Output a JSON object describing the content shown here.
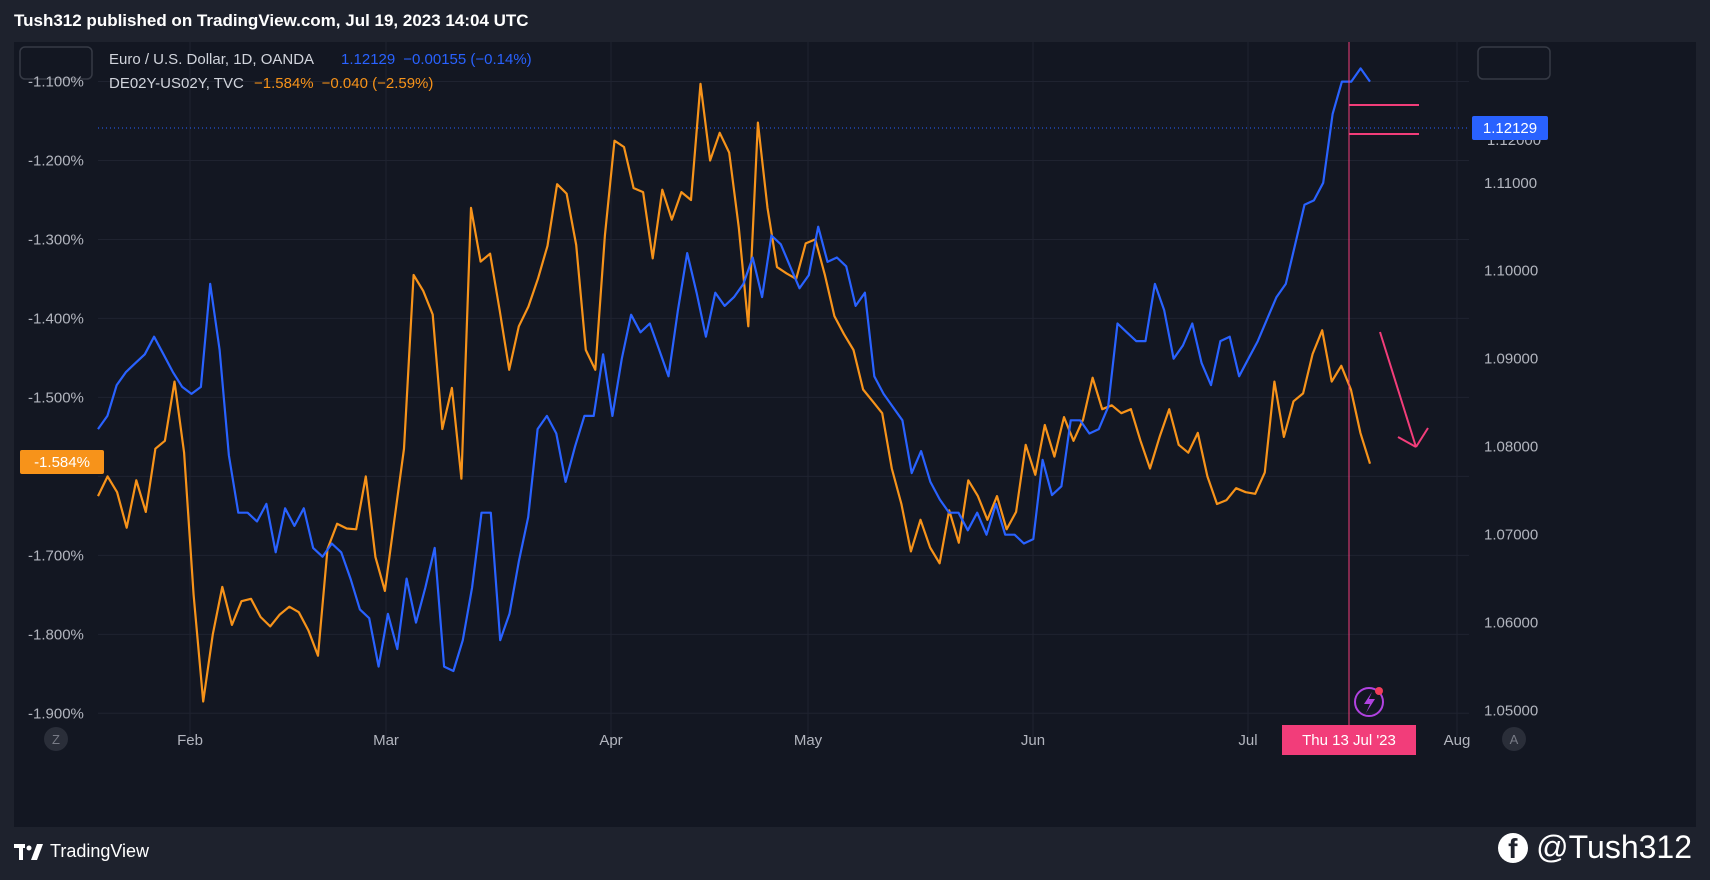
{
  "header": {
    "publish_text": "Tush312 published on TradingView.com, Jul 19, 2023 14:04 UTC"
  },
  "legend": {
    "eurusd": {
      "name": "Euro / U.S. Dollar, 1D, OANDA",
      "price": "1.12129",
      "change": "−0.00155 (−0.14%)",
      "color": "#2962ff"
    },
    "spread": {
      "name": "DE02Y-US02Y, TVC",
      "price": "−1.584%",
      "change": "−0.040 (−2.59%)",
      "color": "#f7931a"
    }
  },
  "price_badges": {
    "left": "-1.584%",
    "right": "1.12129",
    "right_partial": "1.12000"
  },
  "cursor": {
    "date_label": "Thu 13 Jul '23",
    "color": "#f23d7a"
  },
  "bottom_buttons": {
    "zoom_left": "Z",
    "auto_right": "A"
  },
  "footer": {
    "brand": "TradingView",
    "author": "@Tush312"
  },
  "icons": [
    "tradingview-logo-icon",
    "facebook-icon",
    "lightning-icon"
  ],
  "chart_data": {
    "type": "line",
    "x_axis": {
      "labels": [
        "Feb",
        "Mar",
        "Apr",
        "May",
        "Jun",
        "Jul",
        "Aug"
      ]
    },
    "y_left": {
      "labels": [
        "-1.100%",
        "-1.200%",
        "-1.300%",
        "-1.400%",
        "-1.500%",
        "-1.700%",
        "-1.800%",
        "-1.900%"
      ],
      "range": [
        -1.93,
        -1.05
      ]
    },
    "y_right": {
      "labels": [
        "1.11000",
        "1.10000",
        "1.09000",
        "1.08000",
        "1.07000",
        "1.06000",
        "1.05000"
      ],
      "range": [
        1.047,
        1.126
      ]
    },
    "grid": true,
    "series": [
      {
        "name": "Euro / U.S. Dollar, 1D, OANDA",
        "axis": "right",
        "color": "#2962ff",
        "values": [
          1.082,
          1.0835,
          1.087,
          1.0885,
          1.0895,
          1.0905,
          1.0925,
          1.0905,
          1.0885,
          1.0868,
          1.086,
          1.0868,
          1.0985,
          1.091,
          1.079,
          1.0725,
          1.0725,
          1.0715,
          1.0735,
          1.068,
          1.073,
          1.071,
          1.073,
          1.0685,
          1.0675,
          1.069,
          1.068,
          1.065,
          1.0615,
          1.0605,
          1.055,
          1.061,
          1.057,
          1.065,
          1.06,
          1.064,
          1.0685,
          1.055,
          1.0545,
          1.058,
          1.064,
          1.0725,
          1.0725,
          1.058,
          1.061,
          1.067,
          1.072,
          1.082,
          1.0835,
          1.0815,
          1.076,
          1.08,
          1.0835,
          1.0835,
          1.0905,
          1.0835,
          1.09,
          1.095,
          1.093,
          1.094,
          1.091,
          1.088,
          1.0955,
          1.102,
          1.0975,
          1.0925,
          1.0975,
          1.096,
          1.097,
          1.0985,
          1.1015,
          1.097,
          1.104,
          1.103,
          1.1005,
          1.098,
          1.0995,
          1.105,
          1.101,
          1.1015,
          1.1005,
          1.096,
          1.0975,
          1.088,
          1.086,
          1.0845,
          1.083,
          1.077,
          1.0795,
          1.076,
          1.074,
          1.0725,
          1.0725,
          1.0705,
          1.0725,
          1.07,
          1.0735,
          1.07,
          1.07,
          1.069,
          1.0695,
          1.0785,
          1.0745,
          1.0755,
          1.083,
          1.083,
          1.0815,
          1.082,
          1.0845,
          1.094,
          1.093,
          1.092,
          1.092,
          1.0985,
          1.0955,
          1.09,
          1.0915,
          1.094,
          1.0895,
          1.087,
          1.092,
          1.0925,
          1.088,
          1.09,
          1.092,
          1.0945,
          1.097,
          1.0985,
          1.103,
          1.1075,
          1.108,
          1.11,
          1.1178,
          1.1215,
          1.1215,
          1.123,
          1.1215
        ]
      },
      {
        "name": "DE02Y-US02Y, TVC",
        "axis": "left",
        "color": "#f7931a",
        "values": [
          -1.625,
          -1.6,
          -1.62,
          -1.665,
          -1.605,
          -1.645,
          -1.565,
          -1.555,
          -1.48,
          -1.57,
          -1.75,
          -1.885,
          -1.8,
          -1.74,
          -1.788,
          -1.758,
          -1.755,
          -1.778,
          -1.79,
          -1.775,
          -1.765,
          -1.772,
          -1.795,
          -1.827,
          -1.692,
          -1.66,
          -1.666,
          -1.667,
          -1.6,
          -1.702,
          -1.745,
          -1.654,
          -1.565,
          -1.345,
          -1.365,
          -1.395,
          -1.54,
          -1.488,
          -1.603,
          -1.26,
          -1.328,
          -1.318,
          -1.39,
          -1.465,
          -1.41,
          -1.385,
          -1.35,
          -1.308,
          -1.23,
          -1.242,
          -1.307,
          -1.44,
          -1.465,
          -1.295,
          -1.175,
          -1.183,
          -1.235,
          -1.24,
          -1.324,
          -1.237,
          -1.275,
          -1.24,
          -1.25,
          -1.103,
          -1.2,
          -1.165,
          -1.19,
          -1.285,
          -1.41,
          -1.152,
          -1.26,
          -1.335,
          -1.343,
          -1.35,
          -1.305,
          -1.3,
          -1.345,
          -1.397,
          -1.42,
          -1.44,
          -1.49,
          -1.505,
          -1.52,
          -1.59,
          -1.635,
          -1.695,
          -1.655,
          -1.69,
          -1.71,
          -1.643,
          -1.684,
          -1.605,
          -1.625,
          -1.655,
          -1.625,
          -1.667,
          -1.645,
          -1.56,
          -1.598,
          -1.535,
          -1.575,
          -1.525,
          -1.555,
          -1.528,
          -1.475,
          -1.515,
          -1.51,
          -1.52,
          -1.515,
          -1.555,
          -1.59,
          -1.55,
          -1.515,
          -1.56,
          -1.57,
          -1.545,
          -1.6,
          -1.635,
          -1.63,
          -1.615,
          -1.62,
          -1.622,
          -1.595,
          -1.48,
          -1.55,
          -1.505,
          -1.495,
          -1.445,
          -1.415,
          -1.48,
          -1.46,
          -1.49,
          -1.545,
          -1.584
        ]
      }
    ]
  }
}
